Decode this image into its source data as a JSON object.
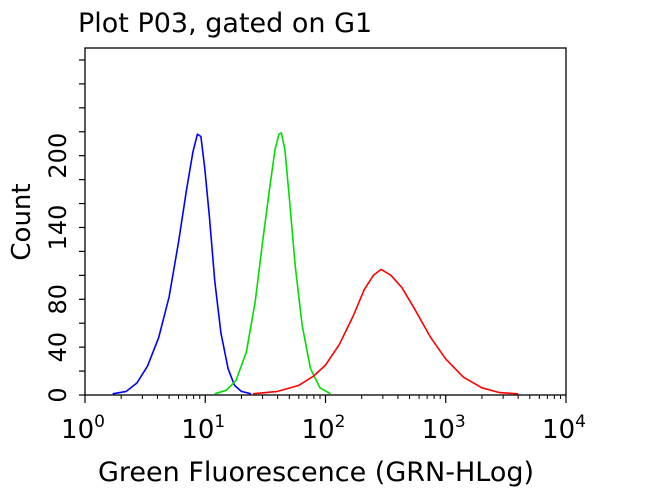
{
  "chart_data": {
    "type": "line",
    "title": "Plot P03, gated on G1",
    "xlabel": "Green Fluorescence (GRN-HLog)",
    "ylabel": "Count",
    "x_scale": "log",
    "xlim": [
      1,
      10000
    ],
    "ylim": [
      0,
      290
    ],
    "x_ticks": [
      {
        "base": "10",
        "exp": "0",
        "value": 1
      },
      {
        "base": "10",
        "exp": "1",
        "value": 10
      },
      {
        "base": "10",
        "exp": "2",
        "value": 100
      },
      {
        "base": "10",
        "exp": "3",
        "value": 1000
      },
      {
        "base": "10",
        "exp": "4",
        "value": 10000
      }
    ],
    "y_ticks": [
      {
        "label": "0",
        "value": 0
      },
      {
        "label": "40",
        "value": 40
      },
      {
        "label": "80",
        "value": 80
      },
      {
        "label": "140",
        "value": 140
      },
      {
        "label": "200",
        "value": 200
      }
    ],
    "y_minor_ticks": [
      0,
      20,
      40,
      60,
      80,
      100,
      120,
      140,
      160,
      180,
      200,
      220,
      240,
      260,
      280
    ],
    "grid": false,
    "series": [
      {
        "color": "#0000ff",
        "x": [
          1.7,
          2.2,
          2.7,
          3.3,
          4.1,
          5.0,
          6.0,
          7.0,
          7.9,
          8.6,
          9.2,
          9.9,
          10.8,
          12.0,
          13.5,
          15.5,
          17.5,
          20.0,
          24.0
        ],
        "y": [
          1,
          3,
          10,
          24,
          48,
          82,
          128,
          172,
          203,
          218,
          216,
          190,
          150,
          95,
          52,
          22,
          8,
          3,
          1
        ]
      },
      {
        "color": "#00dd00",
        "x": [
          12.0,
          15.0,
          18.0,
          22.0,
          26.0,
          30.0,
          34.0,
          38.0,
          41.0,
          43.0,
          46.0,
          50.0,
          56.0,
          64.0,
          75.0,
          90.0,
          110.0
        ],
        "y": [
          1,
          4,
          12,
          36,
          78,
          128,
          170,
          205,
          218,
          219,
          205,
          165,
          108,
          58,
          22,
          6,
          1
        ]
      },
      {
        "color": "#ff0000",
        "x": [
          25,
          40,
          60,
          80,
          100,
          130,
          170,
          210,
          250,
          290,
          350,
          430,
          550,
          750,
          1000,
          1400,
          2000,
          2800,
          4000
        ],
        "y": [
          1,
          3,
          8,
          16,
          25,
          42,
          66,
          88,
          100,
          105,
          100,
          90,
          72,
          48,
          30,
          15,
          6,
          2,
          1
        ]
      }
    ]
  }
}
